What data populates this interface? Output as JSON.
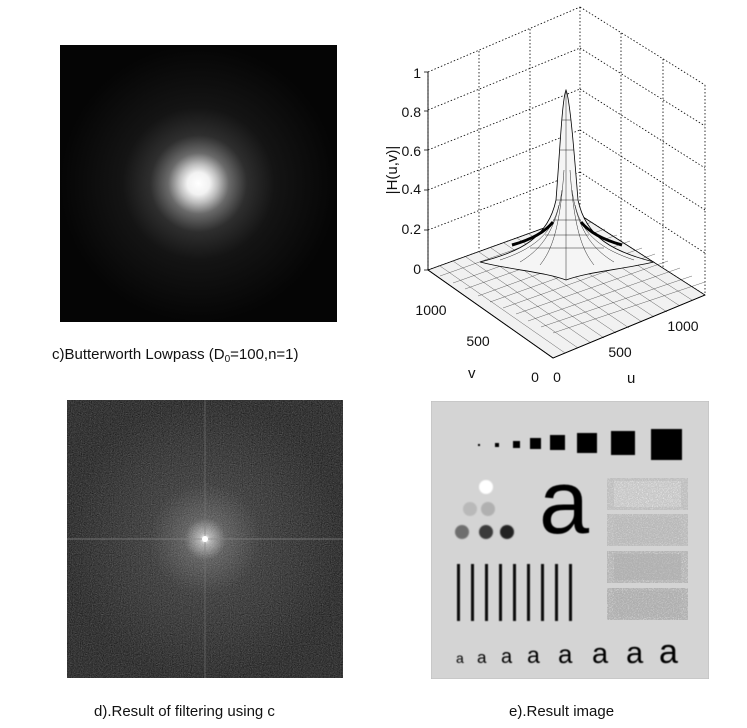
{
  "panel_c": {
    "caption_prefix": "c)Butterworth Lowpass (D",
    "caption_sub": "0",
    "caption_suffix": "=100,n=1)",
    "background": "#050505",
    "glow": "#ffffff"
  },
  "surface_plot": {
    "zlabel": "|H(u,v)|",
    "xlabel": "u",
    "ylabel": "v",
    "z_ticks": [
      "0",
      "0.2",
      "0.4",
      "0.6",
      "0.8",
      "1"
    ],
    "u_ticks": [
      "0",
      "500",
      "1000"
    ],
    "v_ticks": [
      "0",
      "500",
      "1000"
    ]
  },
  "panel_d": {
    "caption": "d).Result of filtering using c",
    "background": "#141414"
  },
  "panel_e": {
    "caption": "e).Result image",
    "background": "#d4d4d4",
    "big_letter": "a",
    "small_letters": [
      "a",
      "a",
      "a",
      "a",
      "a",
      "a",
      "a",
      "a"
    ]
  }
}
